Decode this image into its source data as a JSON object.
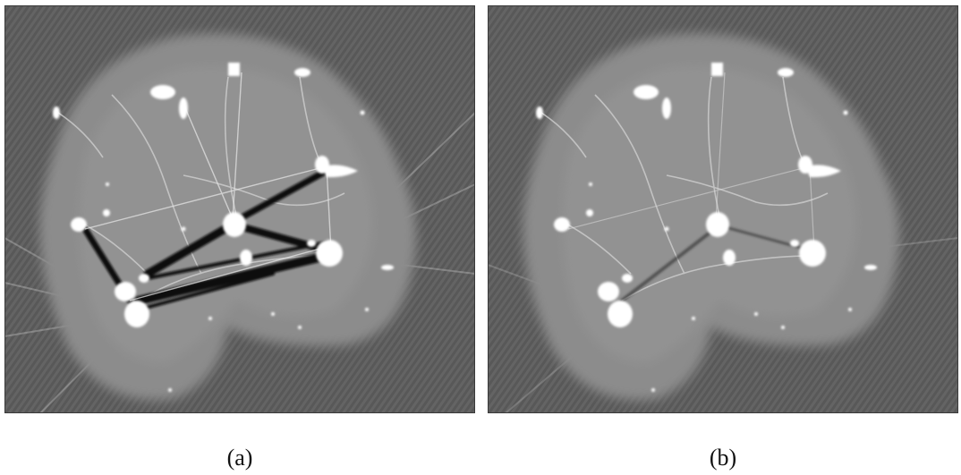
{
  "figure": {
    "panels": [
      {
        "label": "(a)",
        "image": "ct-slice-with-metal-streak-artifacts"
      },
      {
        "label": "(b)",
        "image": "ct-slice-artifact-reduced"
      }
    ],
    "colors": {
      "background": "#5a5a5a",
      "tissue": "#8a8a8a",
      "bright": "#ffffff",
      "dark_streak": "#101010"
    }
  }
}
